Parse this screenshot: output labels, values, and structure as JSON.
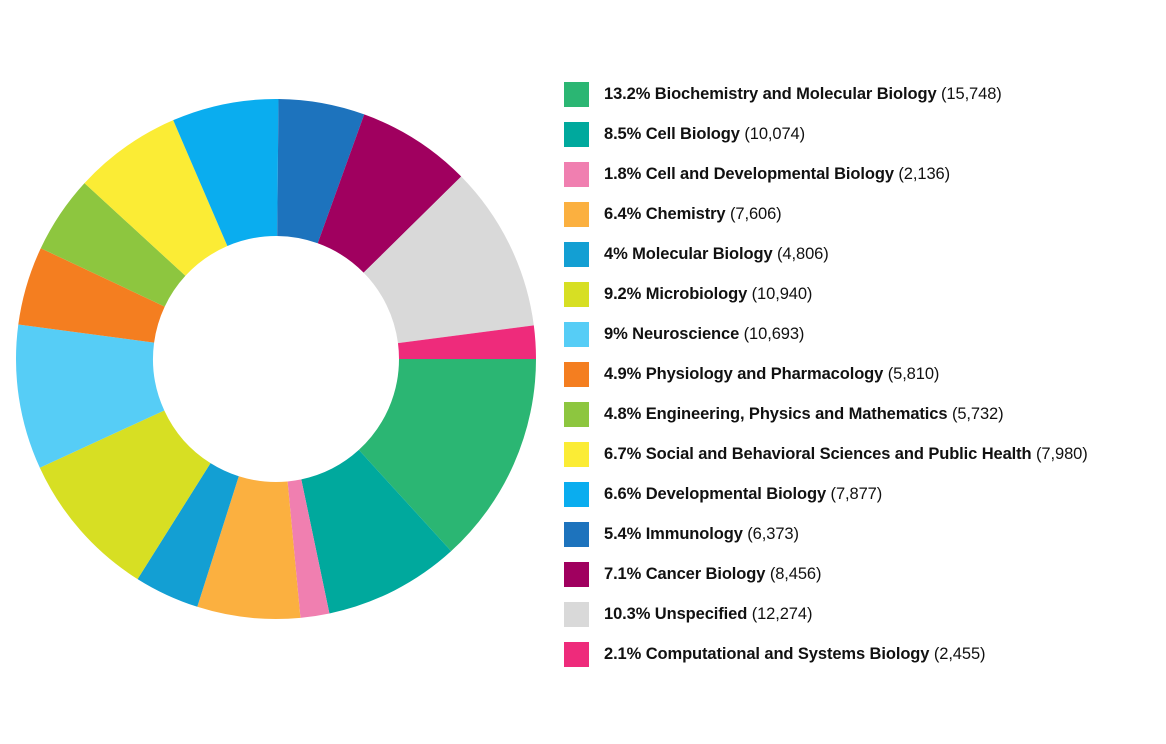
{
  "chart_data": {
    "type": "pie",
    "title": "",
    "legend_position": "right",
    "slices": [
      {
        "label": "Biochemistry and Molecular Biology",
        "percent_label": "13.2%",
        "count_label": "(15,748)",
        "value": 15748,
        "color": "#2bb673"
      },
      {
        "label": "Cell Biology",
        "percent_label": "8.5%",
        "count_label": "(10,074)",
        "value": 10074,
        "color": "#00a99d"
      },
      {
        "label": "Cell and Developmental Biology",
        "percent_label": "1.8%",
        "count_label": "(2,136)",
        "value": 2136,
        "color": "#f07fb0"
      },
      {
        "label": "Chemistry",
        "percent_label": "6.4%",
        "count_label": "(7,606)",
        "value": 7606,
        "color": "#fbb040"
      },
      {
        "label": "Molecular Biology",
        "percent_label": "4%",
        "count_label": "(4,806)",
        "value": 4806,
        "color": "#139fd3"
      },
      {
        "label": "Microbiology",
        "percent_label": "9.2%",
        "count_label": "(10,940)",
        "value": 10940,
        "color": "#d7df23"
      },
      {
        "label": "Neuroscience",
        "percent_label": "9%",
        "count_label": "(10,693)",
        "value": 10693,
        "color": "#56cdf6"
      },
      {
        "label": "Physiology and Pharmacology",
        "percent_label": "4.9%",
        "count_label": "(5,810)",
        "value": 5810,
        "color": "#f47e20"
      },
      {
        "label": "Engineering, Physics and Mathematics",
        "percent_label": "4.8%",
        "count_label": "(5,732)",
        "value": 5732,
        "color": "#8dc63f"
      },
      {
        "label": "Social and Behavioral Sciences and Public Health",
        "percent_label": "6.7%",
        "count_label": "(7,980)",
        "value": 7980,
        "color": "#fbec35"
      },
      {
        "label": "Developmental Biology",
        "percent_label": "6.6%",
        "count_label": "(7,877)",
        "value": 7877,
        "color": "#0aadef"
      },
      {
        "label": "Immunology",
        "percent_label": "5.4%",
        "count_label": "(6,373)",
        "value": 6373,
        "color": "#1d73bd"
      },
      {
        "label": "Cancer Biology",
        "percent_label": "7.1%",
        "count_label": "(8,456)",
        "value": 8456,
        "color": "#a0005f"
      },
      {
        "label": "Unspecified",
        "percent_label": "10.3%",
        "count_label": "(12,274)",
        "value": 12274,
        "color": "#d9d9d9"
      },
      {
        "label": "Computational and Systems Biology",
        "percent_label": "2.1%",
        "count_label": "(2,455)",
        "value": 2455,
        "color": "#ee2b7b"
      }
    ]
  }
}
